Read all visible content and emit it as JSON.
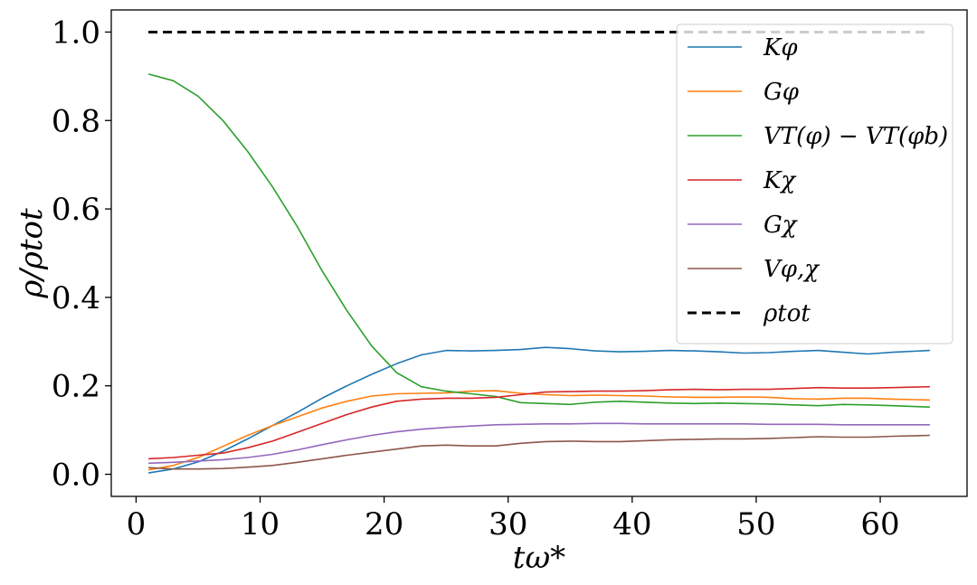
{
  "chart_data": {
    "type": "line",
    "xlabel": "tω*",
    "ylabel": "ρ/ρtot",
    "xlim": [
      -2,
      67
    ],
    "ylim": [
      -0.05,
      1.05
    ],
    "xticks": [
      0,
      10,
      20,
      30,
      40,
      50,
      60
    ],
    "yticks": [
      0.0,
      0.2,
      0.4,
      0.6,
      0.8,
      1.0
    ],
    "x_tick_labels": [
      "0",
      "10",
      "20",
      "30",
      "40",
      "50",
      "60"
    ],
    "y_tick_labels": [
      "0.0",
      "0.2",
      "0.4",
      "0.6",
      "0.8",
      "1.0"
    ],
    "grid": false,
    "legend_position": "upper-right",
    "x": [
      1,
      3,
      5,
      7,
      9,
      11,
      13,
      15,
      17,
      19,
      21,
      23,
      25,
      27,
      29,
      31,
      33,
      35,
      37,
      39,
      41,
      43,
      45,
      47,
      49,
      51,
      53,
      55,
      57,
      59,
      61,
      64
    ],
    "series": [
      {
        "name": "Kφ",
        "color": "#1f77b4",
        "dash": "",
        "values": [
          0.003,
          0.012,
          0.028,
          0.052,
          0.08,
          0.11,
          0.14,
          0.172,
          0.2,
          0.226,
          0.25,
          0.27,
          0.28,
          0.279,
          0.28,
          0.282,
          0.287,
          0.284,
          0.279,
          0.277,
          0.278,
          0.28,
          0.279,
          0.277,
          0.274,
          0.275,
          0.278,
          0.28,
          0.276,
          0.272,
          0.276,
          0.28
        ]
      },
      {
        "name": "Gφ",
        "color": "#ff7f0e",
        "dash": "",
        "values": [
          0.01,
          0.02,
          0.038,
          0.063,
          0.088,
          0.11,
          0.13,
          0.15,
          0.165,
          0.177,
          0.182,
          0.183,
          0.184,
          0.188,
          0.189,
          0.183,
          0.18,
          0.178,
          0.179,
          0.178,
          0.177,
          0.175,
          0.174,
          0.174,
          0.175,
          0.174,
          0.171,
          0.17,
          0.172,
          0.172,
          0.17,
          0.168
        ]
      },
      {
        "name": "VT(φ) − VT(φb)",
        "color": "#2ca02c",
        "dash": "",
        "values": [
          0.905,
          0.89,
          0.855,
          0.8,
          0.73,
          0.65,
          0.56,
          0.46,
          0.37,
          0.29,
          0.23,
          0.198,
          0.188,
          0.182,
          0.176,
          0.162,
          0.16,
          0.158,
          0.163,
          0.165,
          0.163,
          0.161,
          0.16,
          0.161,
          0.16,
          0.159,
          0.157,
          0.155,
          0.158,
          0.157,
          0.155,
          0.152
        ]
      },
      {
        "name": "Kχ",
        "color": "#d62728",
        "dash": "",
        "values": [
          0.035,
          0.038,
          0.043,
          0.048,
          0.06,
          0.075,
          0.095,
          0.115,
          0.135,
          0.152,
          0.165,
          0.17,
          0.172,
          0.172,
          0.174,
          0.18,
          0.186,
          0.187,
          0.188,
          0.188,
          0.189,
          0.191,
          0.192,
          0.191,
          0.192,
          0.192,
          0.194,
          0.196,
          0.195,
          0.195,
          0.196,
          0.198
        ]
      },
      {
        "name": "Gχ",
        "color": "#9467bd",
        "dash": "",
        "values": [
          0.025,
          0.027,
          0.03,
          0.033,
          0.038,
          0.045,
          0.055,
          0.067,
          0.078,
          0.088,
          0.096,
          0.102,
          0.106,
          0.109,
          0.112,
          0.113,
          0.114,
          0.114,
          0.115,
          0.115,
          0.114,
          0.114,
          0.114,
          0.114,
          0.114,
          0.113,
          0.113,
          0.113,
          0.112,
          0.112,
          0.112,
          0.112
        ]
      },
      {
        "name": "Vφ,χ",
        "color": "#8c564b",
        "dash": "",
        "values": [
          0.015,
          0.012,
          0.012,
          0.013,
          0.016,
          0.02,
          0.027,
          0.035,
          0.043,
          0.05,
          0.057,
          0.064,
          0.066,
          0.064,
          0.064,
          0.07,
          0.074,
          0.075,
          0.074,
          0.074,
          0.076,
          0.078,
          0.079,
          0.08,
          0.08,
          0.081,
          0.083,
          0.085,
          0.084,
          0.084,
          0.086,
          0.088
        ]
      },
      {
        "name": "ρtot",
        "color": "#000000",
        "dash": "10,6",
        "values": [
          1,
          1,
          1,
          1,
          1,
          1,
          1,
          1,
          1,
          1,
          1,
          1,
          1,
          1,
          1,
          1,
          1,
          1,
          1,
          1,
          1,
          1,
          1,
          1,
          1,
          1,
          1,
          1,
          1,
          1,
          1,
          1
        ]
      }
    ]
  }
}
